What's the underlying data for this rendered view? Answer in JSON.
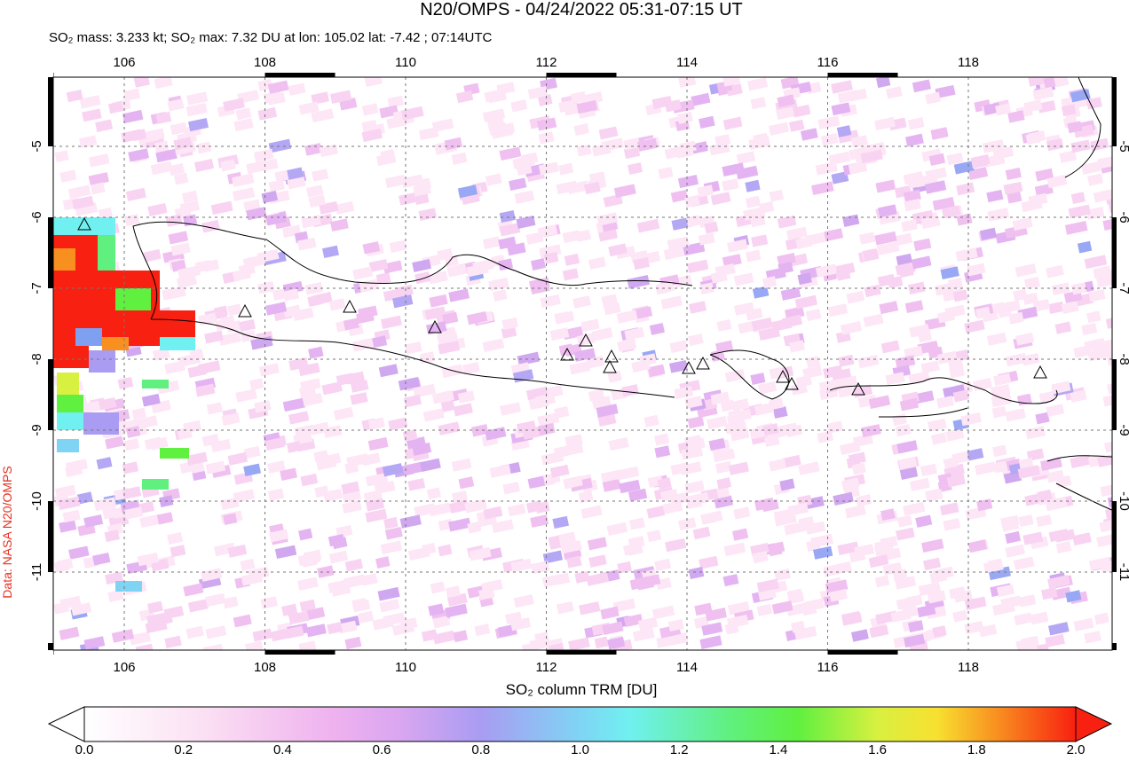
{
  "title": "N20/OMPS - 04/24/2022 05:31-07:15 UT",
  "subtitle": "SO₂ mass: 3.233 kt; SO₂ max: 7.32 DU at lon: 105.02 lat: -7.42 ; 07:14UTC",
  "lon_ticks": [
    106,
    108,
    110,
    112,
    114,
    116,
    118
  ],
  "lat_ticks": [
    -5,
    -6,
    -7,
    -8,
    -9,
    -10,
    -11
  ],
  "colorbar": {
    "label": "SO₂ column TRM [DU]",
    "ticks": [
      "0.0",
      "0.2",
      "0.4",
      "0.6",
      "0.8",
      "1.0",
      "1.2",
      "1.4",
      "1.6",
      "1.8",
      "2.0"
    ]
  },
  "credit": "Data: NASA N20/OMPS"
}
